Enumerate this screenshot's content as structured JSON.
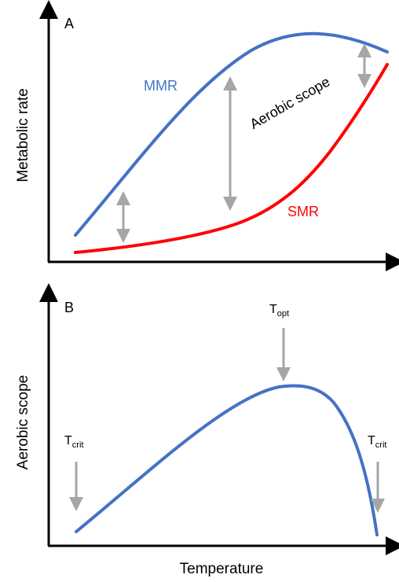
{
  "panel_a": {
    "label": "A",
    "ylabel": "Metabolic rate",
    "mmr_label": "MMR",
    "smr_label": "SMR",
    "scope_label": "Aerobic scope"
  },
  "panel_b": {
    "label": "B",
    "ylabel": "Aerobic scope",
    "topt_main": "T",
    "topt_sub": "opt",
    "tcrit_left_main": "T",
    "tcrit_left_sub": "crit",
    "tcrit_right_main": "T",
    "tcrit_right_sub": "crit"
  },
  "xlabel": "Temperature",
  "colors": {
    "mmr": "#4472C4",
    "smr": "#FF0000",
    "scope_curve": "#4472C4",
    "arrows": "#A6A6A6",
    "axes": "#000000",
    "text": "#000000"
  }
}
